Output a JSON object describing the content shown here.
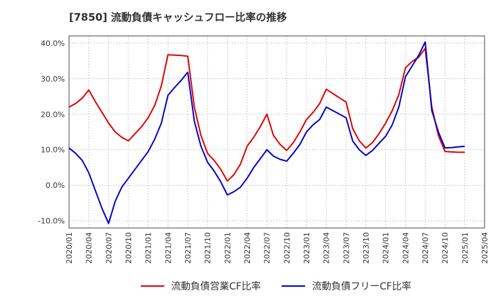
{
  "chart_data": {
    "type": "line",
    "title": "[7850]  流動負債キャッシュフロー比率の推移",
    "xlabel": "",
    "ylabel": "",
    "ylim": [
      -12,
      42
    ],
    "y_ticks": [
      -10,
      0,
      10,
      20,
      30,
      40
    ],
    "y_tick_labels": [
      "-10.0%",
      "0.0%",
      "10.0%",
      "20.0%",
      "30.0%",
      "40.0%"
    ],
    "x_tick_labels": [
      "2020/01",
      "2020/04",
      "2020/07",
      "2020/10",
      "2021/01",
      "2021/04",
      "2021/07",
      "2021/10",
      "2022/01",
      "2022/04",
      "2022/07",
      "2022/10",
      "2023/01",
      "2023/04",
      "2023/07",
      "2023/10",
      "2024/01",
      "2024/04",
      "2024/07",
      "2024/10",
      "2025/01",
      "2025/04"
    ],
    "grid": true,
    "legend_position": "bottom",
    "x_start_label": "2020/01",
    "x": [
      "2020/01",
      "2020/02",
      "2020/03",
      "2020/04",
      "2020/05",
      "2020/06",
      "2020/07",
      "2020/08",
      "2020/09",
      "2020/10",
      "2020/11",
      "2020/12",
      "2021/01",
      "2021/02",
      "2021/03",
      "2021/04",
      "2021/05",
      "2021/06",
      "2021/07",
      "2021/08",
      "2021/09",
      "2021/10",
      "2021/11",
      "2021/12",
      "2022/01",
      "2022/02",
      "2022/03",
      "2022/04",
      "2022/05",
      "2022/06",
      "2022/07",
      "2022/08",
      "2022/09",
      "2022/10",
      "2022/11",
      "2022/12",
      "2023/01",
      "2023/02",
      "2023/03",
      "2023/04",
      "2023/05",
      "2023/06",
      "2023/07",
      "2023/08",
      "2023/09",
      "2023/10",
      "2023/11",
      "2023/12",
      "2024/01",
      "2024/02",
      "2024/03",
      "2024/04",
      "2024/05",
      "2024/06",
      "2024/07",
      "2024/08",
      "2024/09",
      "2024/10",
      "2024/11",
      "2024/12",
      "2025/01"
    ],
    "series": [
      {
        "name": "流動負債営業CF比率",
        "color": "#dd0000",
        "values": [
          22.0,
          23.0,
          24.5,
          26.8,
          23.5,
          20.5,
          17.5,
          15.0,
          13.5,
          12.5,
          14.5,
          16.5,
          19.0,
          22.5,
          28.0,
          36.7,
          36.6,
          36.5,
          36.3,
          22.0,
          14.0,
          9.0,
          7.0,
          4.5,
          1.2,
          3.0,
          6.0,
          11.0,
          13.5,
          16.5,
          20.0,
          14.0,
          11.5,
          9.8,
          12.0,
          15.0,
          18.5,
          20.5,
          23.0,
          27.0,
          25.8,
          24.6,
          23.4,
          16.0,
          12.5,
          10.5,
          12.0,
          14.5,
          17.5,
          21.0,
          25.5,
          33.0,
          34.8,
          36.0,
          38.5,
          22.0,
          14.0,
          9.5,
          9.4,
          9.3,
          9.3
        ]
      },
      {
        "name": "流動負債フリーCF比率",
        "color": "#0000cc",
        "values": [
          10.5,
          9.0,
          7.0,
          3.5,
          -1.5,
          -6.5,
          -10.7,
          -4.5,
          -0.5,
          2.0,
          4.5,
          7.0,
          9.5,
          13.0,
          17.5,
          25.3,
          27.5,
          29.5,
          31.8,
          18.0,
          11.0,
          6.5,
          4.0,
          1.0,
          -2.7,
          -1.8,
          -0.5,
          2.0,
          5.0,
          7.5,
          10.0,
          8.2,
          7.3,
          6.8,
          9.0,
          11.5,
          15.0,
          17.0,
          18.5,
          22.0,
          21.0,
          20.0,
          19.0,
          12.5,
          10.0,
          8.4,
          9.8,
          11.8,
          13.8,
          17.0,
          22.0,
          30.5,
          33.5,
          36.5,
          40.3,
          21.0,
          15.0,
          10.5,
          10.6,
          10.8,
          11.0
        ]
      }
    ]
  }
}
